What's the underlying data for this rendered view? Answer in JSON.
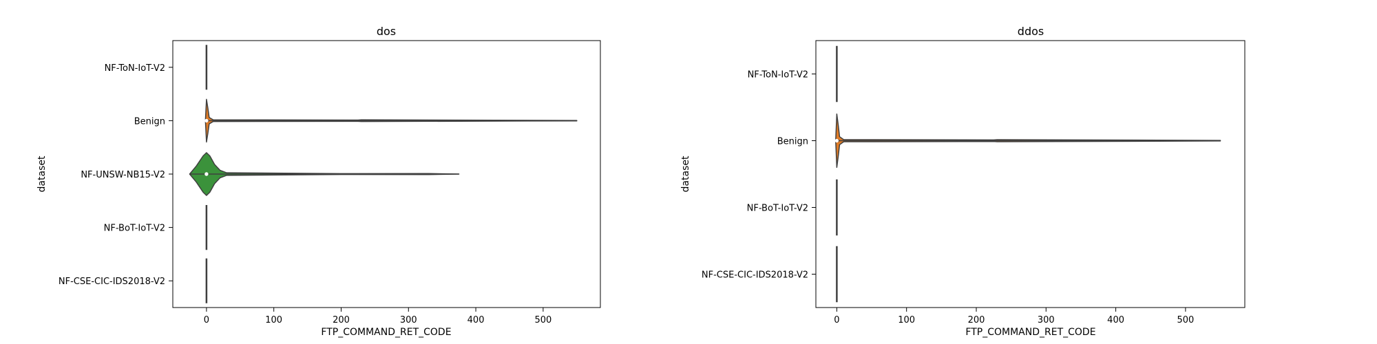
{
  "chart_data": [
    {
      "type": "violin",
      "title": "dos",
      "xlabel": "FTP_COMMAND_RET_CODE",
      "ylabel": "dataset",
      "xlim": [
        -50,
        585
      ],
      "xticks": [
        0,
        100,
        200,
        300,
        400,
        500
      ],
      "grid": false,
      "legend": "none",
      "categories": [
        "NF-ToN-IoT-V2",
        "Benign",
        "NF-UNSW-NB15-V2",
        "NF-BoT-IoT-V2",
        "NF-CSE-CIC-IDS2018-V2"
      ],
      "series": [
        {
          "category": "NF-ToN-IoT-V2",
          "color": "#3a75ae",
          "min": 0,
          "max": 0,
          "median": 0,
          "whisker": [
            0,
            0
          ],
          "peak_half_width": 0.01,
          "profile": [
            [
              0,
              1.0
            ]
          ]
        },
        {
          "category": "Benign",
          "color": "#e07c27",
          "min": 0,
          "max": 550,
          "median": 0,
          "whisker": [
            0,
            3
          ],
          "peak_half_width": 0.4,
          "profile": [
            [
              -1.5,
              0.05
            ],
            [
              0,
              1.0
            ],
            [
              2,
              0.6
            ],
            [
              4,
              0.15
            ],
            [
              10,
              0.04
            ],
            [
              225,
              0.03
            ],
            [
              230,
              0.04
            ],
            [
              550,
              0.01
            ]
          ]
        },
        {
          "category": "NF-UNSW-NB15-V2",
          "color": "#3b923b",
          "min": -25,
          "max": 375,
          "median": 0,
          "whisker": [
            -2,
            2
          ],
          "peak_half_width": 0.4,
          "profile": [
            [
              -25,
              0.0
            ],
            [
              -15,
              0.38
            ],
            [
              -5,
              0.85
            ],
            [
              0,
              1.0
            ],
            [
              5,
              0.85
            ],
            [
              12,
              0.45
            ],
            [
              20,
              0.18
            ],
            [
              30,
              0.06
            ],
            [
              200,
              0.02
            ],
            [
              330,
              0.025
            ],
            [
              375,
              0.0
            ]
          ]
        },
        {
          "category": "NF-BoT-IoT-V2",
          "color": "#3a75ae",
          "min": 0,
          "max": 0,
          "median": 0,
          "whisker": [
            0,
            0
          ],
          "peak_half_width": 0.01,
          "profile": [
            [
              0,
              1.0
            ]
          ]
        },
        {
          "category": "NF-CSE-CIC-IDS2018-V2",
          "color": "#3a75ae",
          "min": 0,
          "max": 0,
          "median": 0,
          "whisker": [
            0,
            0
          ],
          "peak_half_width": 0.01,
          "profile": [
            [
              0,
              1.0
            ]
          ]
        }
      ]
    },
    {
      "type": "violin",
      "title": "ddos",
      "xlabel": "FTP_COMMAND_RET_CODE",
      "ylabel": "dataset",
      "xlim": [
        -30,
        585
      ],
      "xticks": [
        0,
        100,
        200,
        300,
        400,
        500
      ],
      "grid": false,
      "legend": "none",
      "categories": [
        "NF-ToN-IoT-V2",
        "Benign",
        "NF-BoT-IoT-V2",
        "NF-CSE-CIC-IDS2018-V2"
      ],
      "series": [
        {
          "category": "NF-ToN-IoT-V2",
          "color": "#3a75ae",
          "min": 0,
          "max": 0,
          "median": 0,
          "whisker": [
            0,
            0
          ],
          "peak_half_width": 0.01,
          "profile": [
            [
              0,
              1.0
            ]
          ]
        },
        {
          "category": "Benign",
          "color": "#e07c27",
          "min": 0,
          "max": 550,
          "median": 0,
          "whisker": [
            0,
            3
          ],
          "peak_half_width": 0.4,
          "profile": [
            [
              -1.5,
              0.05
            ],
            [
              0,
              1.0
            ],
            [
              2,
              0.6
            ],
            [
              4,
              0.15
            ],
            [
              10,
              0.04
            ],
            [
              225,
              0.03
            ],
            [
              230,
              0.04
            ],
            [
              550,
              0.01
            ]
          ]
        },
        {
          "category": "NF-BoT-IoT-V2",
          "color": "#3a75ae",
          "min": 0,
          "max": 0,
          "median": 0,
          "whisker": [
            0,
            0
          ],
          "peak_half_width": 0.01,
          "profile": [
            [
              0,
              1.0
            ]
          ]
        },
        {
          "category": "NF-CSE-CIC-IDS2018-V2",
          "color": "#3a75ae",
          "min": 0,
          "max": 0,
          "median": 0,
          "whisker": [
            0,
            0
          ],
          "peak_half_width": 0.01,
          "profile": [
            [
              0,
              1.0
            ]
          ]
        }
      ]
    }
  ]
}
